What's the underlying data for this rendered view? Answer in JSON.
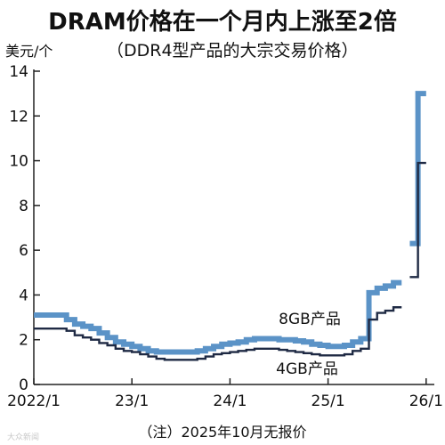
{
  "title": "DRAM价格在一个月内上涨至2倍",
  "unit_label": "美元/个",
  "subtitle": "（DDR4型产品的大宗交易价格）",
  "note": "（注）2025年10月无报价",
  "watermark": "大众新闻",
  "colors": {
    "series_8gb": "#5b93c7",
    "series_4gb": "#1f2a44",
    "axis": "#222222"
  },
  "chart_data": {
    "type": "line",
    "step": true,
    "title": "DRAM价格在一个月内上涨至2倍",
    "subtitle": "（DDR4型产品的大宗交易价格）",
    "ylabel": "美元/个",
    "xlabel": "",
    "ylim": [
      0,
      14
    ],
    "yticks": [
      0,
      2,
      4,
      6,
      8,
      10,
      12,
      14
    ],
    "xlim": [
      "2022-01",
      "2026-02"
    ],
    "xticks": [
      {
        "date": "2022-01",
        "label": "2022/1"
      },
      {
        "date": "2023-01",
        "label": "23/1"
      },
      {
        "date": "2024-01",
        "label": "24/1"
      },
      {
        "date": "2025-01",
        "label": "25/1"
      },
      {
        "date": "2026-01",
        "label": "26/1"
      }
    ],
    "grid": false,
    "series": [
      {
        "name": "8GB产品",
        "color": "#5b93c7",
        "points": [
          [
            "2022-01",
            3.1
          ],
          [
            "2022-02",
            3.1
          ],
          [
            "2022-03",
            3.1
          ],
          [
            "2022-04",
            3.1
          ],
          [
            "2022-05",
            2.9
          ],
          [
            "2022-06",
            2.7
          ],
          [
            "2022-07",
            2.6
          ],
          [
            "2022-08",
            2.5
          ],
          [
            "2022-09",
            2.3
          ],
          [
            "2022-10",
            2.1
          ],
          [
            "2022-11",
            1.9
          ],
          [
            "2022-12",
            1.8
          ],
          [
            "2023-01",
            1.7
          ],
          [
            "2023-02",
            1.6
          ],
          [
            "2023-03",
            1.5
          ],
          [
            "2023-04",
            1.45
          ],
          [
            "2023-05",
            1.45
          ],
          [
            "2023-06",
            1.45
          ],
          [
            "2023-07",
            1.45
          ],
          [
            "2023-08",
            1.45
          ],
          [
            "2023-09",
            1.5
          ],
          [
            "2023-10",
            1.6
          ],
          [
            "2023-11",
            1.7
          ],
          [
            "2023-12",
            1.8
          ],
          [
            "2024-01",
            1.85
          ],
          [
            "2024-02",
            1.9
          ],
          [
            "2024-03",
            2.0
          ],
          [
            "2024-04",
            2.05
          ],
          [
            "2024-05",
            2.05
          ],
          [
            "2024-06",
            2.05
          ],
          [
            "2024-07",
            2.0
          ],
          [
            "2024-08",
            2.0
          ],
          [
            "2024-09",
            1.95
          ],
          [
            "2024-10",
            1.9
          ],
          [
            "2024-11",
            1.8
          ],
          [
            "2024-12",
            1.75
          ],
          [
            "2025-01",
            1.7
          ],
          [
            "2025-02",
            1.7
          ],
          [
            "2025-03",
            1.75
          ],
          [
            "2025-04",
            1.9
          ],
          [
            "2025-05",
            2.05
          ],
          [
            "2025-06",
            4.1
          ],
          [
            "2025-07",
            4.3
          ],
          [
            "2025-08",
            4.4
          ],
          [
            "2025-09",
            4.55
          ],
          [
            "2025-11",
            6.3
          ],
          [
            "2025-12",
            13.0
          ]
        ]
      },
      {
        "name": "4GB产品",
        "color": "#1f2a44",
        "points": [
          [
            "2022-01",
            2.5
          ],
          [
            "2022-02",
            2.5
          ],
          [
            "2022-03",
            2.5
          ],
          [
            "2022-04",
            2.5
          ],
          [
            "2022-05",
            2.4
          ],
          [
            "2022-06",
            2.2
          ],
          [
            "2022-07",
            2.1
          ],
          [
            "2022-08",
            2.0
          ],
          [
            "2022-09",
            1.85
          ],
          [
            "2022-10",
            1.75
          ],
          [
            "2022-11",
            1.6
          ],
          [
            "2022-12",
            1.5
          ],
          [
            "2023-01",
            1.45
          ],
          [
            "2023-02",
            1.35
          ],
          [
            "2023-03",
            1.25
          ],
          [
            "2023-04",
            1.15
          ],
          [
            "2023-05",
            1.1
          ],
          [
            "2023-06",
            1.1
          ],
          [
            "2023-07",
            1.1
          ],
          [
            "2023-08",
            1.1
          ],
          [
            "2023-09",
            1.15
          ],
          [
            "2023-10",
            1.25
          ],
          [
            "2023-11",
            1.35
          ],
          [
            "2023-12",
            1.4
          ],
          [
            "2024-01",
            1.45
          ],
          [
            "2024-02",
            1.5
          ],
          [
            "2024-03",
            1.55
          ],
          [
            "2024-04",
            1.6
          ],
          [
            "2024-05",
            1.6
          ],
          [
            "2024-06",
            1.6
          ],
          [
            "2024-07",
            1.55
          ],
          [
            "2024-08",
            1.5
          ],
          [
            "2024-09",
            1.45
          ],
          [
            "2024-10",
            1.4
          ],
          [
            "2024-11",
            1.35
          ],
          [
            "2024-12",
            1.3
          ],
          [
            "2025-01",
            1.3
          ],
          [
            "2025-02",
            1.3
          ],
          [
            "2025-03",
            1.35
          ],
          [
            "2025-04",
            1.5
          ],
          [
            "2025-05",
            1.6
          ],
          [
            "2025-06",
            2.9
          ],
          [
            "2025-07",
            3.2
          ],
          [
            "2025-08",
            3.3
          ],
          [
            "2025-09",
            3.45
          ],
          [
            "2025-11",
            4.8
          ],
          [
            "2025-12",
            9.9
          ]
        ]
      }
    ],
    "annotations": [
      {
        "text": "8GB产品",
        "series": "8GB产品"
      },
      {
        "text": "4GB产品",
        "series": "4GB产品"
      }
    ]
  }
}
